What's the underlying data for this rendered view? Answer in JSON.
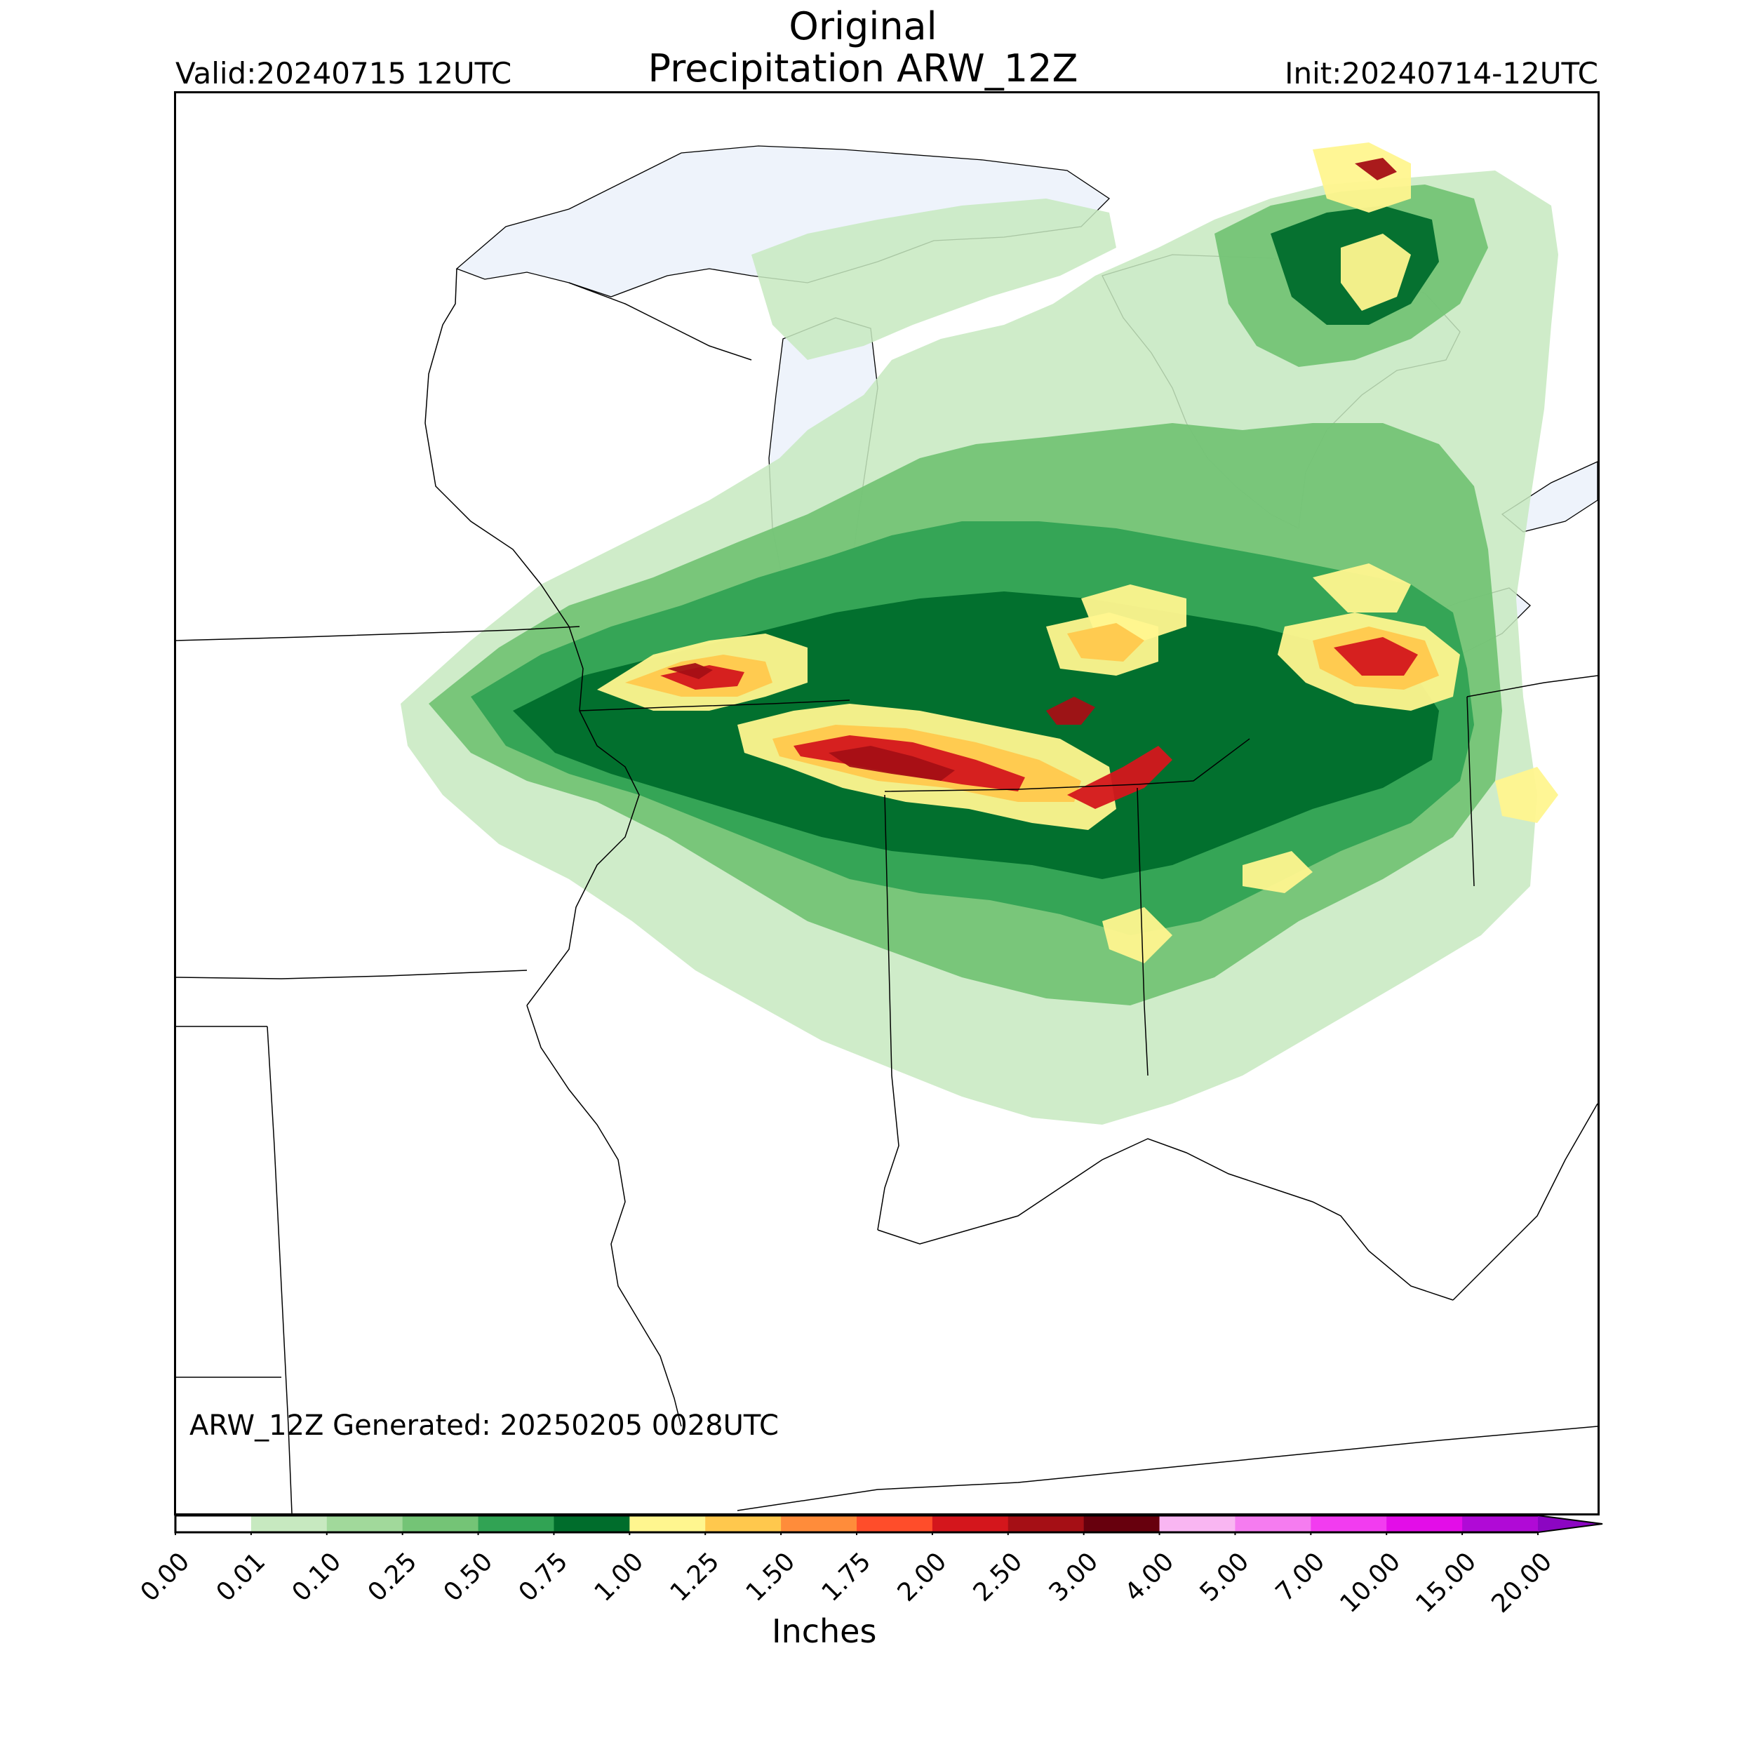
{
  "title": {
    "line1": "Original",
    "line2": "Precipitation ARW_12Z"
  },
  "valid_label": "Valid:20240715 12UTC",
  "init_label": "Init:20240714-12UTC",
  "generated_label": "ARW_12Z Generated: 20250205 0028UTC",
  "colorbar": {
    "label": "Inches",
    "ticks": [
      "0.00",
      "0.01",
      "0.10",
      "0.25",
      "0.50",
      "0.75",
      "1.00",
      "1.25",
      "1.50",
      "1.75",
      "2.00",
      "2.50",
      "3.00",
      "4.00",
      "5.00",
      "7.00",
      "10.00",
      "15.00",
      "20.00"
    ],
    "colors": [
      "#ffffff",
      "#c7e9c0",
      "#a1d99b",
      "#74c476",
      "#31a354",
      "#006d2c",
      "#fff68f",
      "#ffc84d",
      "#ff8c3a",
      "#ff4d2a",
      "#d4161c",
      "#a50f15",
      "#67000d",
      "#f9b6f2",
      "#f57cf0",
      "#f23cf0",
      "#e30de8",
      "#b00ad6",
      "#8c06c2"
    ],
    "extend": "max"
  },
  "map": {
    "type": "precipitation-map",
    "water_color": "#eef3fb",
    "border_color": "#000000",
    "precip_bins": [
      {
        "level": "0.01",
        "color": "#c7e9c0"
      },
      {
        "level": "0.25",
        "color": "#74c476"
      },
      {
        "level": "0.50",
        "color": "#31a354"
      },
      {
        "level": "0.75",
        "color": "#006d2c"
      },
      {
        "level": "1.00",
        "color": "#fff68f"
      },
      {
        "level": "1.25",
        "color": "#ffc84d"
      },
      {
        "level": "1.50",
        "color": "#ff8c3a"
      },
      {
        "level": "2.00",
        "color": "#d4161c"
      },
      {
        "level": "2.50",
        "color": "#a50f15"
      }
    ]
  }
}
